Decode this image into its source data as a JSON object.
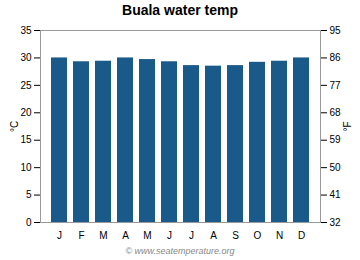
{
  "chart_data": {
    "type": "bar",
    "title": "Buala water temp",
    "categories": [
      "J",
      "F",
      "M",
      "A",
      "M",
      "J",
      "J",
      "A",
      "S",
      "O",
      "N",
      "D"
    ],
    "values": [
      30.0,
      29.3,
      29.4,
      30.0,
      29.7,
      29.3,
      28.6,
      28.5,
      28.6,
      29.2,
      29.4,
      30.0
    ],
    "color": "#1a5a8a",
    "ylabel": "°C",
    "ylim": [
      0,
      35
    ],
    "yticks": [
      0,
      5,
      10,
      15,
      20,
      25,
      30,
      35
    ],
    "y2label": "°F",
    "y2lim": [
      32,
      95
    ],
    "y2ticks": [
      32,
      41,
      50,
      59,
      68,
      77,
      86,
      95
    ],
    "grid": false,
    "annotations": [
      "© www.seatemperature.org"
    ]
  }
}
